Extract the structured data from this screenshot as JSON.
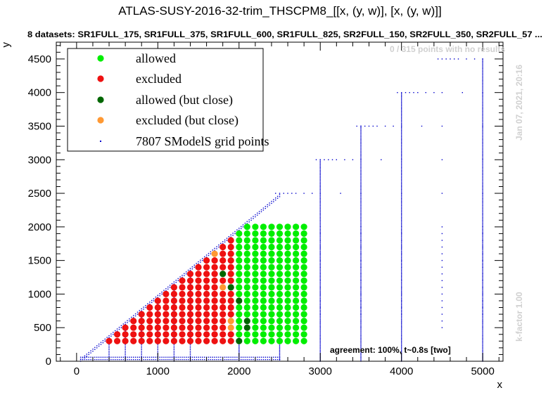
{
  "figure": {
    "title": "ATLAS-SUSY-2016-32-trim_THSCPM8_[[x, (y, w)], [x, (y, w)]]",
    "subtitle": "8 datasets: SR1FULL_175, SR1FULL_375, SR1FULL_600, SR1FULL_825, SR2FULL_150, SR2FULL_350, SR2FULL_57 ...",
    "no_results_note": "0 / 315 points with no results",
    "date_note": "Jan 07, 2021, 20:16",
    "kfactor_note": "k-factor 1.00",
    "agreement_note": "agreement: 100%, t~0.8s [two]"
  },
  "colors": {
    "allowed": "#00ee00",
    "excluded": "#ee1111",
    "allowed_close": "#006600",
    "excluded_close": "#ff9933",
    "grid_points": "#0000cc"
  },
  "chart_data": {
    "type": "scatter",
    "xlabel": "x",
    "ylabel": "y",
    "xlim": [
      -250,
      5250
    ],
    "ylim": [
      0,
      4750
    ],
    "x_ticks": [
      "0",
      "1000",
      "2000",
      "3000",
      "4000",
      "5000"
    ],
    "y_ticks": [
      "0",
      "500",
      "1000",
      "1500",
      "2000",
      "2500",
      "3000",
      "3500",
      "4000",
      "4500"
    ],
    "legend": [
      {
        "key": "allowed",
        "label": "allowed"
      },
      {
        "key": "excluded",
        "label": "excluded"
      },
      {
        "key": "allowed_close",
        "label": "allowed (but close)"
      },
      {
        "key": "excluded_close",
        "label": "excluded (but close)"
      },
      {
        "key": "grid_points",
        "label": "7807 SModelS grid points"
      }
    ],
    "result_grid": {
      "x_start": 200,
      "x_end": 2800,
      "x_step": 100,
      "y_start": 300,
      "y_end": 2000,
      "y_step": 100,
      "diagonal_offset": 100,
      "excluded_xmax": 1900,
      "excluded_close": [
        [
          1700,
          1600
        ],
        [
          1700,
          1700
        ],
        [
          1800,
          1100
        ],
        [
          1900,
          500
        ],
        [
          1900,
          600
        ]
      ],
      "allowed_close": [
        [
          1800,
          1300
        ],
        [
          1900,
          1100
        ],
        [
          2000,
          300
        ],
        [
          2000,
          900
        ],
        [
          2100,
          500
        ],
        [
          2100,
          600
        ]
      ]
    },
    "grid_point_columns_x": [
      3000,
      3500,
      4000,
      5000
    ],
    "grid_point_columns_ymax": [
      3000,
      3500,
      4000,
      4500
    ],
    "grid_point_rows": [
      {
        "y": 2500,
        "x": [
          2450,
          2500,
          2550,
          2600,
          2650,
          2700,
          2800,
          2900,
          3000,
          3250,
          3500,
          4000,
          4500,
          5000
        ]
      },
      {
        "y": 3000,
        "x": [
          2950,
          3000,
          3050,
          3100,
          3150,
          3200,
          3300,
          3400,
          3500,
          3750,
          4000,
          4500,
          5000
        ]
      },
      {
        "y": 3500,
        "x": [
          3450,
          3500,
          3550,
          3600,
          3650,
          3700,
          3800,
          3900,
          4000,
          4250,
          4500,
          5000
        ]
      },
      {
        "y": 4000,
        "x": [
          3950,
          4000,
          4050,
          4100,
          4150,
          4200,
          4300,
          4400,
          4500,
          4750,
          5000
        ]
      },
      {
        "y": 4500,
        "x": [
          4450,
          4500,
          4550,
          4600,
          4650,
          4700,
          4800,
          4900,
          5000
        ]
      }
    ]
  }
}
